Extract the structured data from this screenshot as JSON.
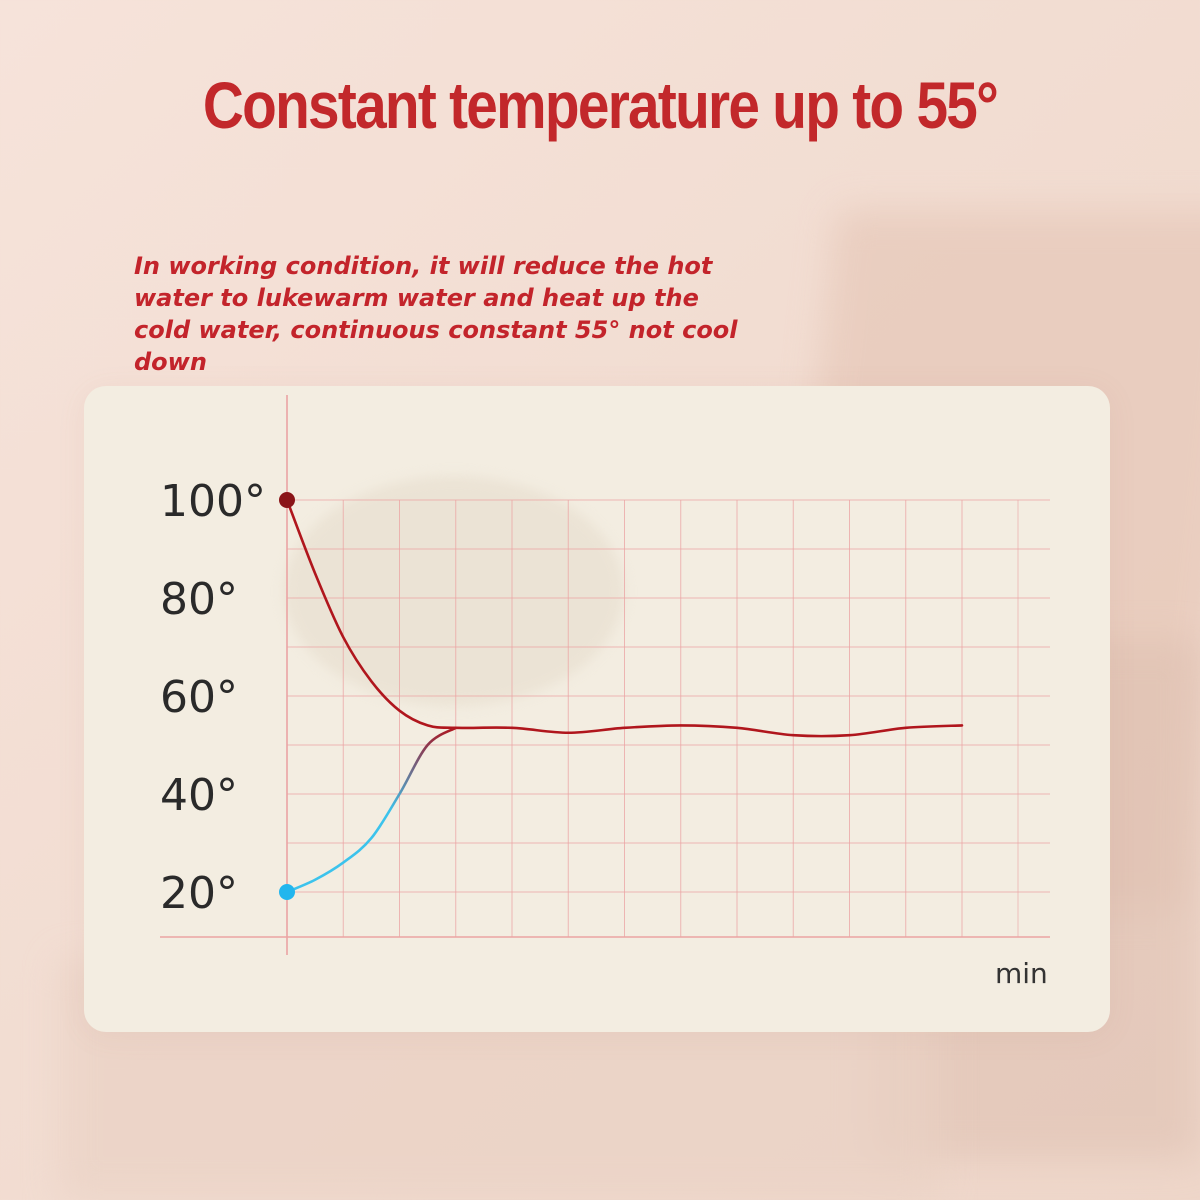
{
  "headline": "Constant temperature up to 55°",
  "description": "In working condition, it will reduce the hot water to lukewarm water and heat up the cold water, continuous constant 55° not cool down",
  "colors": {
    "brand_red": "#c2282b",
    "hot_line": "#b0161d",
    "hot_dot": "#8a1418",
    "cold_line": "#3cc3ec",
    "cold_dot": "#22b6ee",
    "grid": "#eba3a3"
  },
  "chart_data": {
    "type": "line",
    "xlabel": "min",
    "ylabel": "",
    "y_ticks": [
      "100°",
      "80°",
      "60°",
      "40°",
      "20°"
    ],
    "y_tick_values": [
      100,
      80,
      60,
      40,
      20
    ],
    "ylim": [
      20,
      100
    ],
    "grid": true,
    "series": [
      {
        "role": "hot",
        "x": [
          0,
          0.5,
          1,
          1.5,
          2,
          2.5,
          3,
          4,
          5,
          6,
          7,
          8,
          9,
          10,
          11,
          12
        ],
        "y": [
          100,
          85,
          72,
          63,
          57,
          54,
          53.5,
          53.5,
          52.5,
          53.5,
          54,
          53.5,
          52,
          52,
          53.5,
          54
        ]
      },
      {
        "role": "cold",
        "x": [
          0,
          0.5,
          1,
          1.5,
          2,
          2.5,
          3
        ],
        "y": [
          20,
          22.5,
          26,
          31,
          40,
          50,
          53.5
        ]
      }
    ]
  }
}
